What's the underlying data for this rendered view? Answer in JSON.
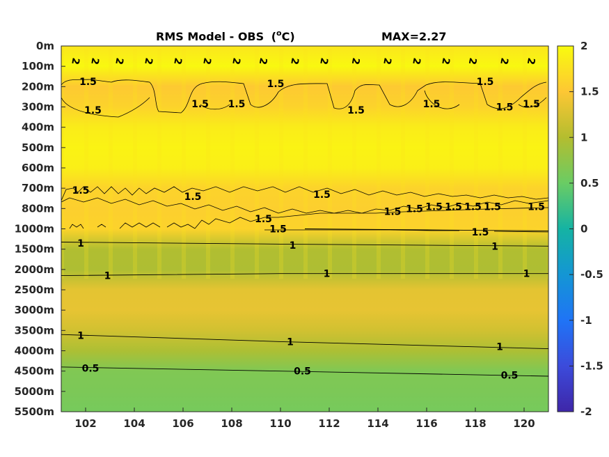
{
  "chart_data": {
    "type": "heatmap",
    "title": "RMS Model - OBS",
    "title_unit_prefix": "(",
    "title_unit_sup": "o",
    "title_unit_suffix": "C)",
    "max_label": "MAX=2.27",
    "x_ticks": [
      102,
      104,
      106,
      108,
      110,
      112,
      114,
      116,
      118,
      120
    ],
    "xlim": [
      101,
      121
    ],
    "y_ticks": [
      "0m",
      "100m",
      "200m",
      "300m",
      "400m",
      "500m",
      "600m",
      "700m",
      "800m",
      "1000m",
      "1500m",
      "2000m",
      "2500m",
      "3000m",
      "3500m",
      "4000m",
      "4500m",
      "5000m",
      "5500m"
    ],
    "y_reversed": true,
    "colorbar": {
      "colormap": "parula",
      "range": [
        -2,
        2
      ],
      "ticks": [
        "2",
        "1.5",
        "1",
        "0.5",
        "0",
        "-0.5",
        "-1",
        "-1.5",
        "-2"
      ]
    },
    "profile_levels": [
      "0m",
      "100m",
      "200m",
      "300m",
      "400m",
      "500m",
      "600m",
      "700m",
      "800m",
      "1000m",
      "1500m",
      "2000m",
      "2500m",
      "3000m",
      "3500m",
      "4000m",
      "4500m",
      "5000m",
      "5500m"
    ],
    "profile_rms": [
      1.8,
      1.97,
      1.52,
      1.62,
      1.86,
      1.92,
      1.88,
      1.62,
      1.58,
      1.62,
      0.98,
      0.96,
      1.33,
      1.35,
      1.2,
      0.95,
      0.65,
      0.62,
      0.58
    ],
    "contour_labels": [
      {
        "text": "2",
        "x": 101.6,
        "level": 0.75
      },
      {
        "text": "2",
        "x": 102.4,
        "level": 0.75
      },
      {
        "text": "2",
        "x": 103.4,
        "level": 0.75
      },
      {
        "text": "2",
        "x": 104.6,
        "level": 0.75
      },
      {
        "text": "2",
        "x": 105.8,
        "level": 0.75
      },
      {
        "text": "2",
        "x": 107.0,
        "level": 0.75
      },
      {
        "text": "2",
        "x": 108.2,
        "level": 0.75
      },
      {
        "text": "2",
        "x": 109.3,
        "level": 0.75
      },
      {
        "text": "2",
        "x": 110.6,
        "level": 0.75
      },
      {
        "text": "2",
        "x": 111.8,
        "level": 0.75
      },
      {
        "text": "2",
        "x": 113.1,
        "level": 0.75
      },
      {
        "text": "2",
        "x": 114.4,
        "level": 0.75
      },
      {
        "text": "2",
        "x": 115.6,
        "level": 0.75
      },
      {
        "text": "2",
        "x": 116.8,
        "level": 0.75
      },
      {
        "text": "2",
        "x": 117.9,
        "level": 0.75
      },
      {
        "text": "2",
        "x": 119.2,
        "level": 0.75
      },
      {
        "text": "2",
        "x": 120.3,
        "level": 0.75
      },
      {
        "text": "1.5",
        "x": 102.1,
        "level": 1.75
      },
      {
        "text": "1.5",
        "x": 109.8,
        "level": 1.85
      },
      {
        "text": "1.5",
        "x": 118.4,
        "level": 1.75
      },
      {
        "text": "1.5",
        "x": 102.3,
        "level": 3.15
      },
      {
        "text": "1.5",
        "x": 106.7,
        "level": 2.85
      },
      {
        "text": "1.5",
        "x": 108.2,
        "level": 2.85
      },
      {
        "text": "1.5",
        "x": 113.1,
        "level": 3.15
      },
      {
        "text": "1.5",
        "x": 116.2,
        "level": 2.85
      },
      {
        "text": "1.5",
        "x": 119.2,
        "level": 3.0
      },
      {
        "text": "1.5",
        "x": 120.3,
        "level": 2.85
      },
      {
        "text": "1.5",
        "x": 101.8,
        "level": 7.1
      },
      {
        "text": "1.5",
        "x": 106.4,
        "level": 7.4
      },
      {
        "text": "1.5",
        "x": 111.7,
        "level": 7.3
      },
      {
        "text": "1.5",
        "x": 109.3,
        "level": 8.5
      },
      {
        "text": "1.5",
        "x": 114.6,
        "level": 8.15
      },
      {
        "text": "1.5",
        "x": 115.5,
        "level": 8.0
      },
      {
        "text": "1.5",
        "x": 116.3,
        "level": 7.9
      },
      {
        "text": "1.5",
        "x": 117.1,
        "level": 7.9
      },
      {
        "text": "1.5",
        "x": 117.9,
        "level": 7.9
      },
      {
        "text": "1.5",
        "x": 118.7,
        "level": 7.9
      },
      {
        "text": "1.5",
        "x": 120.5,
        "level": 7.9
      },
      {
        "text": "1.5",
        "x": 109.9,
        "level": 9.0
      },
      {
        "text": "1.5",
        "x": 118.2,
        "level": 9.15
      },
      {
        "text": "1",
        "x": 101.8,
        "level": 9.7
      },
      {
        "text": "1",
        "x": 110.5,
        "level": 9.8
      },
      {
        "text": "1",
        "x": 118.8,
        "level": 9.85
      },
      {
        "text": "1",
        "x": 102.9,
        "level": 11.3
      },
      {
        "text": "1",
        "x": 111.9,
        "level": 11.2
      },
      {
        "text": "1",
        "x": 120.1,
        "level": 11.2
      },
      {
        "text": "1",
        "x": 101.8,
        "level": 14.25
      },
      {
        "text": "1",
        "x": 110.4,
        "level": 14.55
      },
      {
        "text": "1",
        "x": 119.0,
        "level": 14.8
      },
      {
        "text": "0.5",
        "x": 102.2,
        "level": 15.85
      },
      {
        "text": "0.5",
        "x": 110.9,
        "level": 16.0
      },
      {
        "text": "0.5",
        "x": 119.4,
        "level": 16.2
      }
    ],
    "contour_lines": [
      {
        "level_name": "1",
        "points": [
          [
            101,
            9.65
          ],
          [
            110,
            9.75
          ],
          [
            121,
            9.85
          ]
        ]
      },
      {
        "level_name": "1",
        "points": [
          [
            101,
            11.3
          ],
          [
            110,
            11.2
          ],
          [
            121,
            11.2
          ]
        ]
      },
      {
        "level_name": "1",
        "points": [
          [
            101,
            14.2
          ],
          [
            110,
            14.55
          ],
          [
            121,
            14.9
          ]
        ]
      },
      {
        "level_name": "0.5",
        "points": [
          [
            101,
            15.8
          ],
          [
            110,
            16.0
          ],
          [
            121,
            16.25
          ]
        ]
      },
      {
        "level_name": "1.5",
        "points": [
          [
            111,
            9.0
          ],
          [
            116,
            9.05
          ],
          [
            121,
            9.1
          ]
        ]
      }
    ]
  }
}
